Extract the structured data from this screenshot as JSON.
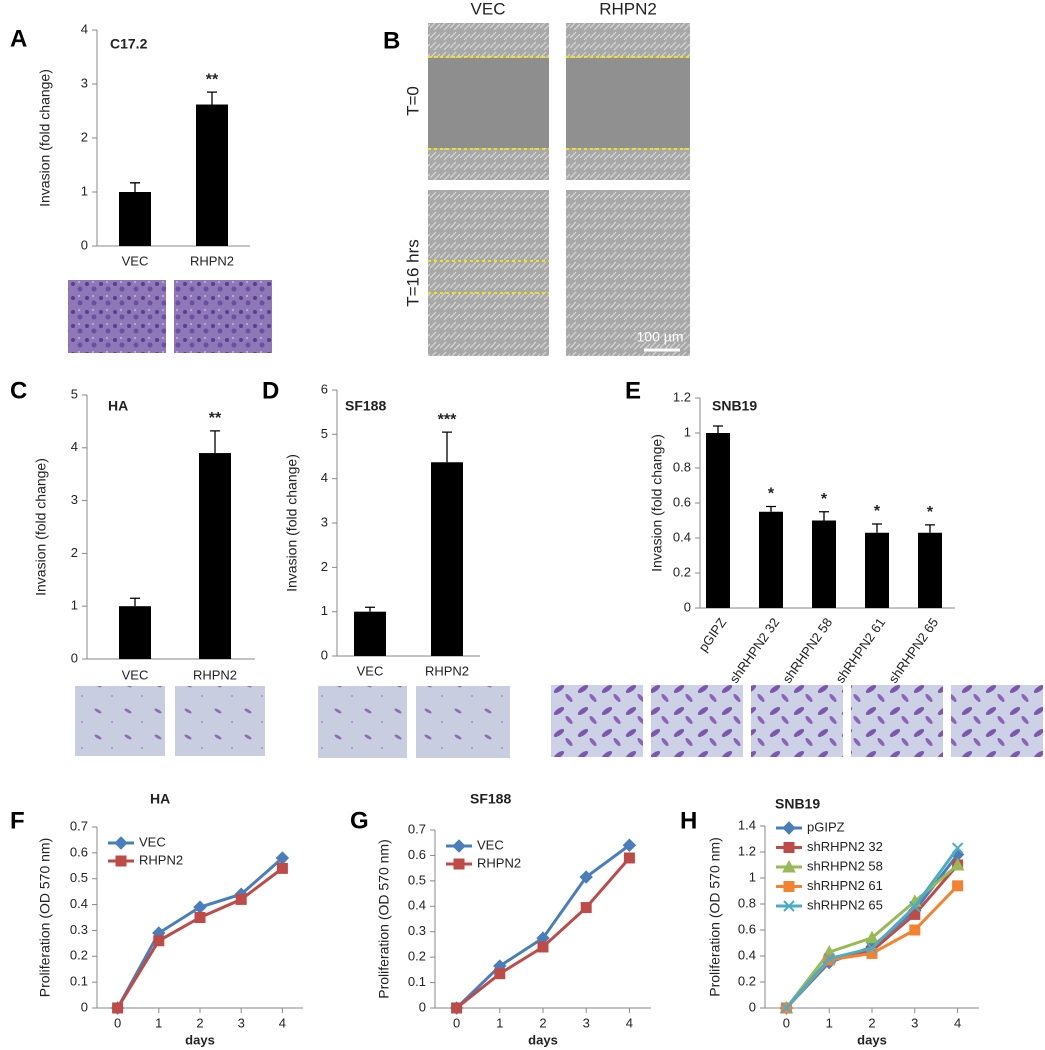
{
  "chart_data": [
    {
      "type": "bar",
      "panel": "A",
      "title": "C17.2",
      "y_label": "Invasion (fold change)",
      "categories": [
        "VEC",
        "RHPN2"
      ],
      "values": [
        1,
        2.62
      ],
      "errors": [
        0.17,
        0.23
      ],
      "color": "#000000",
      "ylim": [
        0,
        4
      ],
      "yticks": [
        0,
        1,
        2,
        3,
        4
      ],
      "annotations": [
        {
          "category": "RHPN2",
          "text": "**"
        }
      ]
    },
    {
      "type": "bar",
      "panel": "C",
      "title": "HA",
      "y_label": "Invasion (fold change)",
      "categories": [
        "VEC",
        "RHPN2"
      ],
      "values": [
        1,
        3.9
      ],
      "errors": [
        0.15,
        0.42
      ],
      "color": "#000000",
      "ylim": [
        0,
        5
      ],
      "yticks": [
        0,
        1,
        2,
        3,
        4,
        5
      ],
      "annotations": [
        {
          "category": "RHPN2",
          "text": "**"
        }
      ]
    },
    {
      "type": "bar",
      "panel": "D",
      "title": "SF188",
      "y_label": "Invasion (fold change)",
      "categories": [
        "VEC",
        "RHPN2"
      ],
      "values": [
        1,
        4.37
      ],
      "errors": [
        0.1,
        0.68
      ],
      "color": "#000000",
      "ylim": [
        0,
        6
      ],
      "yticks": [
        0,
        1,
        2,
        3,
        4,
        5,
        6
      ],
      "annotations": [
        {
          "category": "RHPN2",
          "text": "***"
        }
      ]
    },
    {
      "type": "bar",
      "panel": "E",
      "title": "SNB19",
      "y_label": "Invasion (fold change)",
      "categories": [
        "pGIPZ",
        "shRHPN2 32",
        "shRHPN2 58",
        "shRHPN2 61",
        "shRHPN2 65"
      ],
      "values": [
        1,
        0.55,
        0.5,
        0.43,
        0.43
      ],
      "errors": [
        0.04,
        0.03,
        0.05,
        0.05,
        0.045
      ],
      "color": "#000000",
      "ylim": [
        0,
        1.2
      ],
      "yticks": [
        0,
        0.2,
        0.4,
        0.6,
        0.8,
        1,
        1.2
      ],
      "annotations": [
        {
          "category": "shRHPN2 32",
          "text": "*"
        },
        {
          "category": "shRHPN2 58",
          "text": "*"
        },
        {
          "category": "shRHPN2 61",
          "text": "*"
        },
        {
          "category": "shRHPN2 65",
          "text": "*"
        }
      ]
    },
    {
      "type": "line",
      "panel": "F",
      "title": "HA",
      "x_label": "days",
      "y_label": "Proliferation (OD 570 nm)",
      "x": [
        0,
        1,
        2,
        3,
        4
      ],
      "xlim": [
        -0.5,
        4.5
      ],
      "xticks": [
        0,
        1,
        2,
        3,
        4
      ],
      "ylim": [
        0,
        0.7
      ],
      "yticks": [
        0,
        0.1,
        0.2,
        0.3,
        0.4,
        0.5,
        0.6,
        0.7
      ],
      "legend": "top-left",
      "series": [
        {
          "name": "VEC",
          "color": "#4a7ebb",
          "marker": "diamond",
          "values": [
            0,
            0.29,
            0.39,
            0.44,
            0.58
          ]
        },
        {
          "name": "RHPN2",
          "color": "#be4b48",
          "marker": "square",
          "values": [
            0,
            0.26,
            0.35,
            0.42,
            0.54
          ]
        }
      ]
    },
    {
      "type": "line",
      "panel": "G",
      "title": "SF188",
      "x_label": "days",
      "y_label": "Proliferation (OD 570 nm)",
      "x": [
        0,
        1,
        2,
        3,
        4
      ],
      "xlim": [
        -0.5,
        4.5
      ],
      "xticks": [
        0,
        1,
        2,
        3,
        4
      ],
      "ylim": [
        0,
        0.7
      ],
      "yticks": [
        0,
        0.1,
        0.2,
        0.3,
        0.4,
        0.5,
        0.6,
        0.7
      ],
      "legend": "top-left",
      "series": [
        {
          "name": "VEC",
          "color": "#4a7ebb",
          "marker": "diamond",
          "values": [
            0,
            0.165,
            0.275,
            0.515,
            0.64
          ]
        },
        {
          "name": "RHPN2",
          "color": "#be4b48",
          "marker": "square",
          "values": [
            0,
            0.135,
            0.24,
            0.395,
            0.59
          ]
        }
      ]
    },
    {
      "type": "line",
      "panel": "H",
      "title": "SNB19",
      "x_label": "days",
      "y_label": "Proliferation (OD 570 nm)",
      "x": [
        0,
        1,
        2,
        3,
        4
      ],
      "xlim": [
        -0.5,
        4.5
      ],
      "xticks": [
        0,
        1,
        2,
        3,
        4
      ],
      "ylim": [
        0,
        1.4
      ],
      "yticks": [
        0,
        0.2,
        0.4,
        0.6,
        0.8,
        1,
        1.2,
        1.4
      ],
      "legend": "top-left",
      "series": [
        {
          "name": "pGIPZ",
          "color": "#4a7ebb",
          "marker": "diamond",
          "values": [
            0,
            0.35,
            0.47,
            0.75,
            1.18
          ]
        },
        {
          "name": "shRHPN2 32",
          "color": "#be4b48",
          "marker": "square",
          "values": [
            0,
            0.37,
            0.44,
            0.72,
            1.1
          ]
        },
        {
          "name": "shRHPN2 58",
          "color": "#98b954",
          "marker": "triangle",
          "values": [
            0,
            0.43,
            0.54,
            0.82,
            1.1
          ]
        },
        {
          "name": "shRHPN2 61",
          "color": "#f58231",
          "marker": "square",
          "values": [
            0,
            0.37,
            0.42,
            0.6,
            0.94
          ]
        },
        {
          "name": "shRHPN2 65",
          "color": "#4bacc6",
          "marker": "cross",
          "values": [
            0,
            0.38,
            0.46,
            0.78,
            1.23
          ]
        }
      ]
    }
  ],
  "micrograph": {
    "panel": "B",
    "columns": [
      "VEC",
      "RHPN2"
    ],
    "rows": [
      "T=0",
      "T=16 hrs"
    ],
    "scale_bar": "100 µm"
  }
}
